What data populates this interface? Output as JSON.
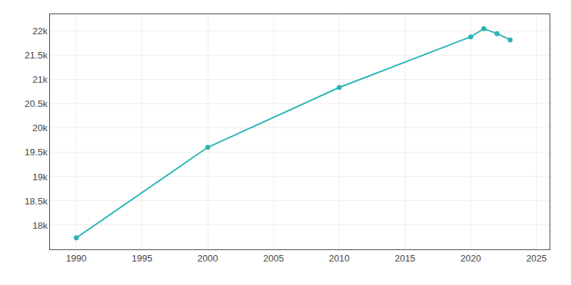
{
  "chart_data": {
    "type": "line",
    "x": [
      1990,
      2000,
      2010,
      2020,
      2021,
      2022,
      2023
    ],
    "values": [
      17737,
      19605,
      20840,
      21884,
      22052,
      21951,
      21822
    ],
    "color": "#2ab5b5",
    "marker": "circle",
    "line_style": "solid",
    "xlim": [
      1988,
      2026
    ],
    "xticks": [
      1990,
      1995,
      2000,
      2005,
      2010,
      2015,
      2020,
      2025
    ],
    "ylim": [
      17500,
      22350
    ],
    "yticks": [
      {
        "value": 18000,
        "label": "18k"
      },
      {
        "value": 18500,
        "label": "18.5k"
      },
      {
        "value": 19000,
        "label": "19k"
      },
      {
        "value": 19500,
        "label": "19.5k"
      },
      {
        "value": 20000,
        "label": "20k"
      },
      {
        "value": 20500,
        "label": "20.5k"
      },
      {
        "value": 21000,
        "label": "21k"
      },
      {
        "value": 21500,
        "label": "21.5k"
      },
      {
        "value": 22000,
        "label": "22k"
      }
    ],
    "grid": true
  }
}
